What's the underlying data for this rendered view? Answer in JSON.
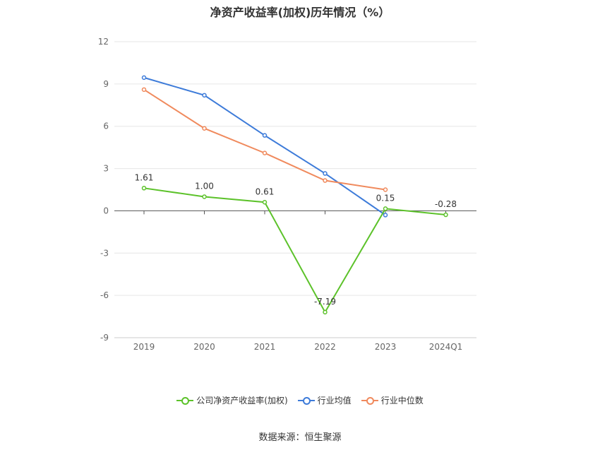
{
  "title": "净资产收益率(加权)历年情况（%）",
  "source": "数据来源：恒生聚源",
  "chart_data": {
    "type": "line",
    "categories": [
      "2019",
      "2020",
      "2021",
      "2022",
      "2023",
      "2024Q1"
    ],
    "ylim": [
      -9,
      12
    ],
    "yticks": [
      -9,
      -6,
      -3,
      0,
      3,
      6,
      9,
      12
    ],
    "grid": true,
    "legend_position": "bottom",
    "series": [
      {
        "name": "公司净资产收益率(加权)",
        "color": "#5cc22a",
        "values": [
          1.61,
          1.0,
          0.61,
          -7.19,
          0.15,
          -0.28
        ],
        "labels": [
          "1.61",
          "1.00",
          "0.61",
          "-7.19",
          "0.15",
          "-0.28"
        ]
      },
      {
        "name": "行业均值",
        "color": "#3d7bd9",
        "values": [
          9.45,
          8.2,
          5.35,
          2.65,
          -0.3,
          null
        ]
      },
      {
        "name": "行业中位数",
        "color": "#f08a5d",
        "values": [
          8.6,
          5.85,
          4.1,
          2.15,
          1.5,
          null
        ]
      }
    ]
  }
}
